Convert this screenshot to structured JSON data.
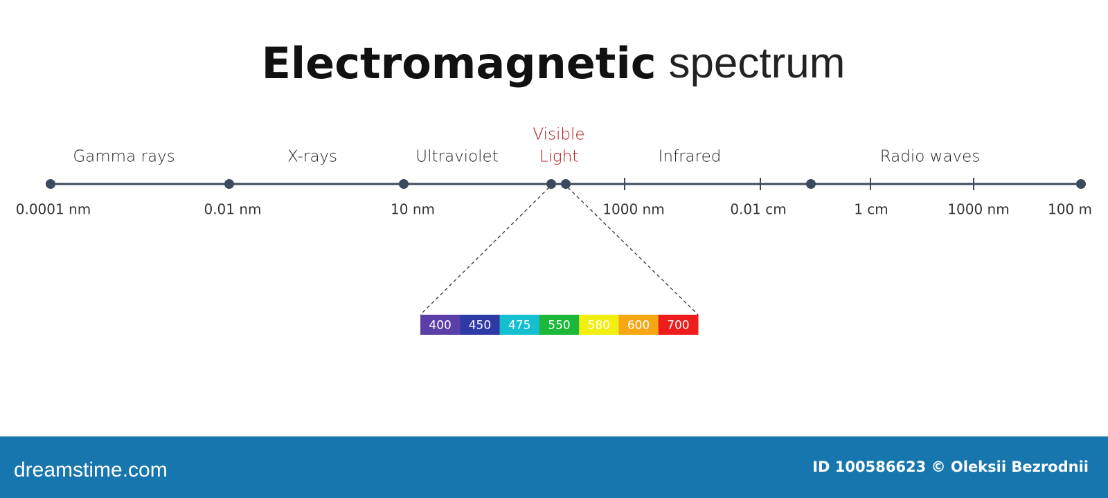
{
  "title": {
    "bold": "Electromagnetic",
    "light": "spectrum"
  },
  "bands": [
    {
      "label": "Gamma rays"
    },
    {
      "label": "X-rays"
    },
    {
      "label": "Ultraviolet"
    },
    {
      "label": "Visible",
      "label2": "Light"
    },
    {
      "label": "Infrared"
    },
    {
      "label": "Radio waves"
    }
  ],
  "scale_labels": [
    "0.0001 nm",
    "0.01 nm",
    "10 nm",
    "1000 nm",
    "0.01 cm",
    "1 cm",
    "1000 nm",
    "100 m"
  ],
  "visible_spectrum": [
    {
      "value": 400,
      "color": "#5b3fa8"
    },
    {
      "value": 450,
      "color": "#2e3ba4"
    },
    {
      "value": 475,
      "color": "#15bfd0"
    },
    {
      "value": 550,
      "color": "#1cb83a"
    },
    {
      "value": 580,
      "color": "#f2ee12"
    },
    {
      "value": 600,
      "color": "#f7a614"
    },
    {
      "value": 700,
      "color": "#ee1c1c"
    }
  ],
  "footer": {
    "brand": "dreamstime.com",
    "credit": "ID 100586623 © Oleksii Bezrodnii"
  }
}
